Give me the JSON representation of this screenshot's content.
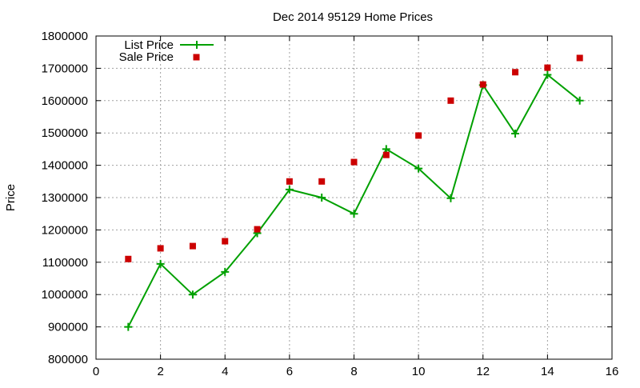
{
  "chart_data": {
    "type": "line",
    "title": "Dec 2014 95129 Home Prices",
    "xlabel": "",
    "ylabel": "Price",
    "xlim": [
      0,
      16
    ],
    "ylim": [
      800000,
      1800000
    ],
    "x_ticks": [
      0,
      2,
      4,
      6,
      8,
      10,
      12,
      14,
      16
    ],
    "y_ticks": [
      800000,
      900000,
      1000000,
      1100000,
      1200000,
      1300000,
      1400000,
      1500000,
      1600000,
      1700000,
      1800000
    ],
    "grid": true,
    "legend": "top-left",
    "series": [
      {
        "name": "List Price",
        "style": "line-with-plus-markers",
        "color": "#00a000",
        "x": [
          1,
          2,
          3,
          4,
          5,
          6,
          7,
          8,
          9,
          10,
          11,
          12,
          13,
          14,
          15
        ],
        "y": [
          900000,
          1095000,
          1000000,
          1070000,
          1190000,
          1325000,
          1300000,
          1250000,
          1450000,
          1390000,
          1298000,
          1648000,
          1498000,
          1680000,
          1600000
        ]
      },
      {
        "name": "Sale Price",
        "style": "square-points",
        "color": "#cc0000",
        "x": [
          1,
          2,
          3,
          4,
          5,
          6,
          7,
          8,
          9,
          10,
          11,
          12,
          13,
          14,
          15
        ],
        "y": [
          1110000,
          1143000,
          1150000,
          1165000,
          1202000,
          1350000,
          1350000,
          1410000,
          1432000,
          1492000,
          1600000,
          1650000,
          1688000,
          1702000,
          1732000
        ]
      }
    ]
  }
}
